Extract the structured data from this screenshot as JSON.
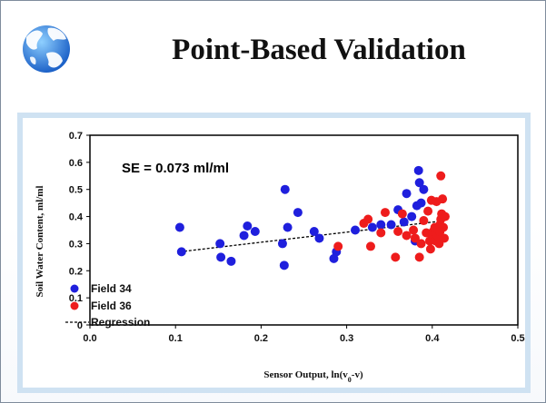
{
  "slide": {
    "title": "Point-Based Validation"
  },
  "colors": {
    "field34": "#1f1fdd",
    "field36": "#ee1c1c",
    "regression": "#000000",
    "frame": "#cfe2f2"
  },
  "chart_data": {
    "type": "scatter",
    "xlabel_main": "Sensor Output, ln(v",
    "xlabel_sub": "0",
    "xlabel_tail": "-v)",
    "ylabel": "Soil Water Content, ml/ml",
    "xlim": [
      0,
      0.5
    ],
    "ylim": [
      0,
      0.7
    ],
    "xticks": [
      0.0,
      0.1,
      0.2,
      0.3,
      0.4,
      0.5
    ],
    "xtick_labels": [
      "0.0",
      "0.1",
      "0.2",
      "0.3",
      "0.4",
      "0.5"
    ],
    "yticks": [
      0,
      0.1,
      0.2,
      0.3,
      0.4,
      0.5,
      0.6,
      0.7
    ],
    "ytick_labels": [
      "0",
      "0.1",
      "0.2",
      "0.3",
      "0.4",
      "0.5",
      "0.6",
      "0.7"
    ],
    "grid": false,
    "legend_position": "bottom-left",
    "annotation": "SE = 0.073 ml/ml",
    "series": [
      {
        "name": "Field 34",
        "color": "#1f1fdd",
        "points": [
          [
            0.105,
            0.36
          ],
          [
            0.107,
            0.27
          ],
          [
            0.152,
            0.3
          ],
          [
            0.153,
            0.25
          ],
          [
            0.165,
            0.235
          ],
          [
            0.18,
            0.33
          ],
          [
            0.184,
            0.365
          ],
          [
            0.193,
            0.345
          ],
          [
            0.225,
            0.3
          ],
          [
            0.227,
            0.22
          ],
          [
            0.228,
            0.5
          ],
          [
            0.231,
            0.36
          ],
          [
            0.243,
            0.415
          ],
          [
            0.262,
            0.345
          ],
          [
            0.268,
            0.32
          ],
          [
            0.285,
            0.245
          ],
          [
            0.288,
            0.27
          ],
          [
            0.31,
            0.35
          ],
          [
            0.33,
            0.36
          ],
          [
            0.34,
            0.37
          ],
          [
            0.352,
            0.37
          ],
          [
            0.36,
            0.425
          ],
          [
            0.367,
            0.38
          ],
          [
            0.37,
            0.485
          ],
          [
            0.376,
            0.4
          ],
          [
            0.38,
            0.31
          ],
          [
            0.382,
            0.44
          ],
          [
            0.384,
            0.57
          ],
          [
            0.387,
            0.45
          ],
          [
            0.385,
            0.525
          ],
          [
            0.39,
            0.5
          ]
        ]
      },
      {
        "name": "Field 36",
        "color": "#ee1c1c",
        "points": [
          [
            0.29,
            0.29
          ],
          [
            0.32,
            0.375
          ],
          [
            0.325,
            0.39
          ],
          [
            0.328,
            0.29
          ],
          [
            0.34,
            0.34
          ],
          [
            0.345,
            0.415
          ],
          [
            0.357,
            0.25
          ],
          [
            0.36,
            0.345
          ],
          [
            0.365,
            0.41
          ],
          [
            0.37,
            0.33
          ],
          [
            0.378,
            0.35
          ],
          [
            0.38,
            0.32
          ],
          [
            0.385,
            0.25
          ],
          [
            0.387,
            0.3
          ],
          [
            0.39,
            0.385
          ],
          [
            0.393,
            0.34
          ],
          [
            0.395,
            0.42
          ],
          [
            0.397,
            0.31
          ],
          [
            0.398,
            0.28
          ],
          [
            0.399,
            0.46
          ],
          [
            0.4,
            0.33
          ],
          [
            0.401,
            0.345
          ],
          [
            0.403,
            0.36
          ],
          [
            0.404,
            0.31
          ],
          [
            0.405,
            0.455
          ],
          [
            0.406,
            0.33
          ],
          [
            0.407,
            0.35
          ],
          [
            0.408,
            0.3
          ],
          [
            0.409,
            0.37
          ],
          [
            0.41,
            0.55
          ],
          [
            0.41,
            0.39
          ],
          [
            0.411,
            0.41
          ],
          [
            0.412,
            0.465
          ],
          [
            0.413,
            0.36
          ],
          [
            0.414,
            0.32
          ],
          [
            0.415,
            0.4
          ],
          [
            0.409,
            0.345
          ]
        ]
      }
    ],
    "regression": {
      "name": "Regression",
      "x": [
        0.105,
        0.415
      ],
      "y": [
        0.27,
        0.385
      ]
    }
  }
}
